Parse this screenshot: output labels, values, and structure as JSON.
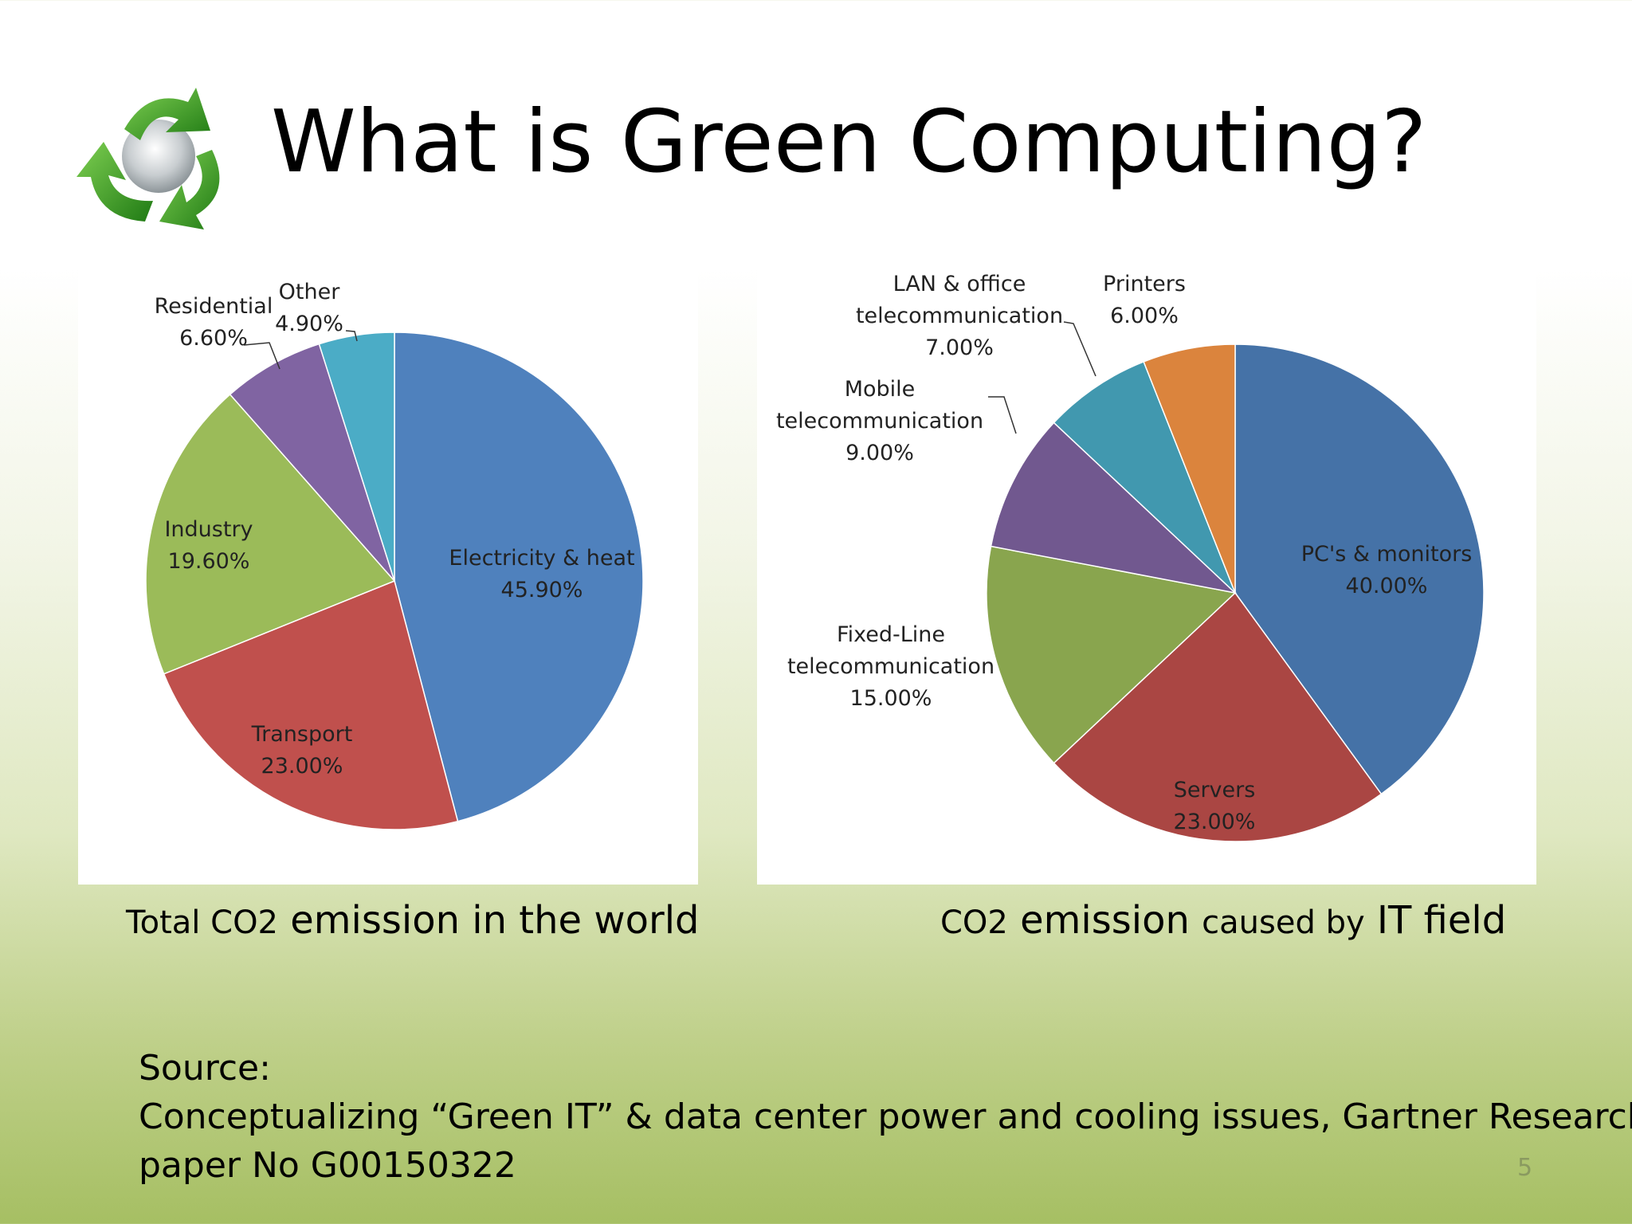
{
  "slide": {
    "title": "What is Green Computing?",
    "page_number": "5"
  },
  "logo": {
    "icon": "recycle-icon",
    "colors": [
      "#2f8f1f",
      "#6cc04a",
      "#c9d0d4"
    ]
  },
  "captions": {
    "left": {
      "pre": "Total CO",
      "sub": "2",
      "post": " emission in the world"
    },
    "right": {
      "pre": "CO",
      "sub": "2",
      "mid": " emission ",
      "small": "caused by",
      "post": " IT field"
    }
  },
  "source": {
    "label": "Source:",
    "line1": "Conceptualizing “Green IT” & data center power and cooling issues, Gartner Research",
    "line2": "paper No G00150322"
  },
  "chart_data": [
    {
      "type": "pie",
      "title": "Total CO2 emission in the world",
      "slices": [
        {
          "name": "Electricity & heat",
          "value": 45.9,
          "label": "45.90%",
          "color": "#4f81bd"
        },
        {
          "name": "Transport",
          "value": 23.0,
          "label": "23.00%",
          "color": "#c0504d"
        },
        {
          "name": "Industry",
          "value": 19.6,
          "label": "19.60%",
          "color": "#9bbb59"
        },
        {
          "name": "Residential",
          "value": 6.6,
          "label": "6.60%",
          "color": "#8064a2"
        },
        {
          "name": "Other",
          "value": 4.9,
          "label": "4.90%",
          "color": "#4bacc6"
        }
      ]
    },
    {
      "type": "pie",
      "title": "CO2 emission caused by IT field",
      "slices": [
        {
          "name": "PC's & monitors",
          "value": 40.0,
          "label": "40.00%",
          "color": "#4572a7"
        },
        {
          "name": "Servers",
          "value": 23.0,
          "label": "23.00%",
          "color": "#aa4643"
        },
        {
          "name": "Fixed-Line telecommunication",
          "value": 15.0,
          "label": "15.00%",
          "color": "#89a54e"
        },
        {
          "name": "Mobile telecommunication",
          "value": 9.0,
          "label": "9.00%",
          "color": "#71588f"
        },
        {
          "name": "LAN & office telecommunication",
          "value": 7.0,
          "label": "7.00%",
          "color": "#4198af"
        },
        {
          "name": "Printers",
          "value": 6.0,
          "label": "6.00%",
          "color": "#db843d"
        }
      ]
    }
  ]
}
